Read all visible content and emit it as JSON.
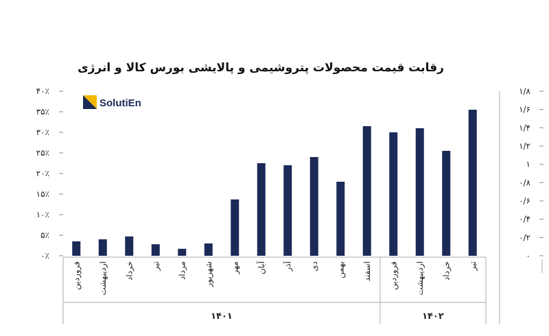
{
  "chart_data": {
    "type": "bar",
    "title": "رقابت قیمت محصولات پتروشیمی و پالایشی بورس کالا و انرژی",
    "categories": [
      "فروردین",
      "اردیبهشت",
      "خرداد",
      "تیر",
      "مرداد",
      "شهریور",
      "مهر",
      "آبان",
      "آذر",
      "دی",
      "بهمن",
      "اسفند",
      "فروردین",
      "اردیبهشت",
      "خرداد",
      "تیر"
    ],
    "groups": [
      {
        "label": "۱۴۰۱",
        "count": 12
      },
      {
        "label": "۱۴۰۲",
        "count": 4
      }
    ],
    "values": [
      3.5,
      4,
      4.7,
      2.8,
      1.7,
      3,
      13.7,
      22.5,
      22,
      24,
      18,
      31.5,
      30,
      31,
      25.5,
      35.5
    ],
    "ylim": [
      0,
      40
    ],
    "yticks": [
      "۰٪",
      "۵٪",
      "۱۰٪",
      "۱۵٪",
      "۲۰٪",
      "۲۵٪",
      "۳۰٪",
      "۳۵٪",
      "۴۰٪"
    ],
    "secondary_yticks": [
      "۰",
      "۰/۲",
      "۰/۴",
      "۰/۶",
      "۰/۸",
      "۱",
      "۱/۲",
      "۱/۴",
      "۱/۶",
      "۱/۸"
    ],
    "bar_color": "#1c2a57",
    "grid": false,
    "logo_text": "SolutiEn",
    "logo_colors": {
      "mark": "#f0b800",
      "text": "#1a2a57"
    }
  }
}
